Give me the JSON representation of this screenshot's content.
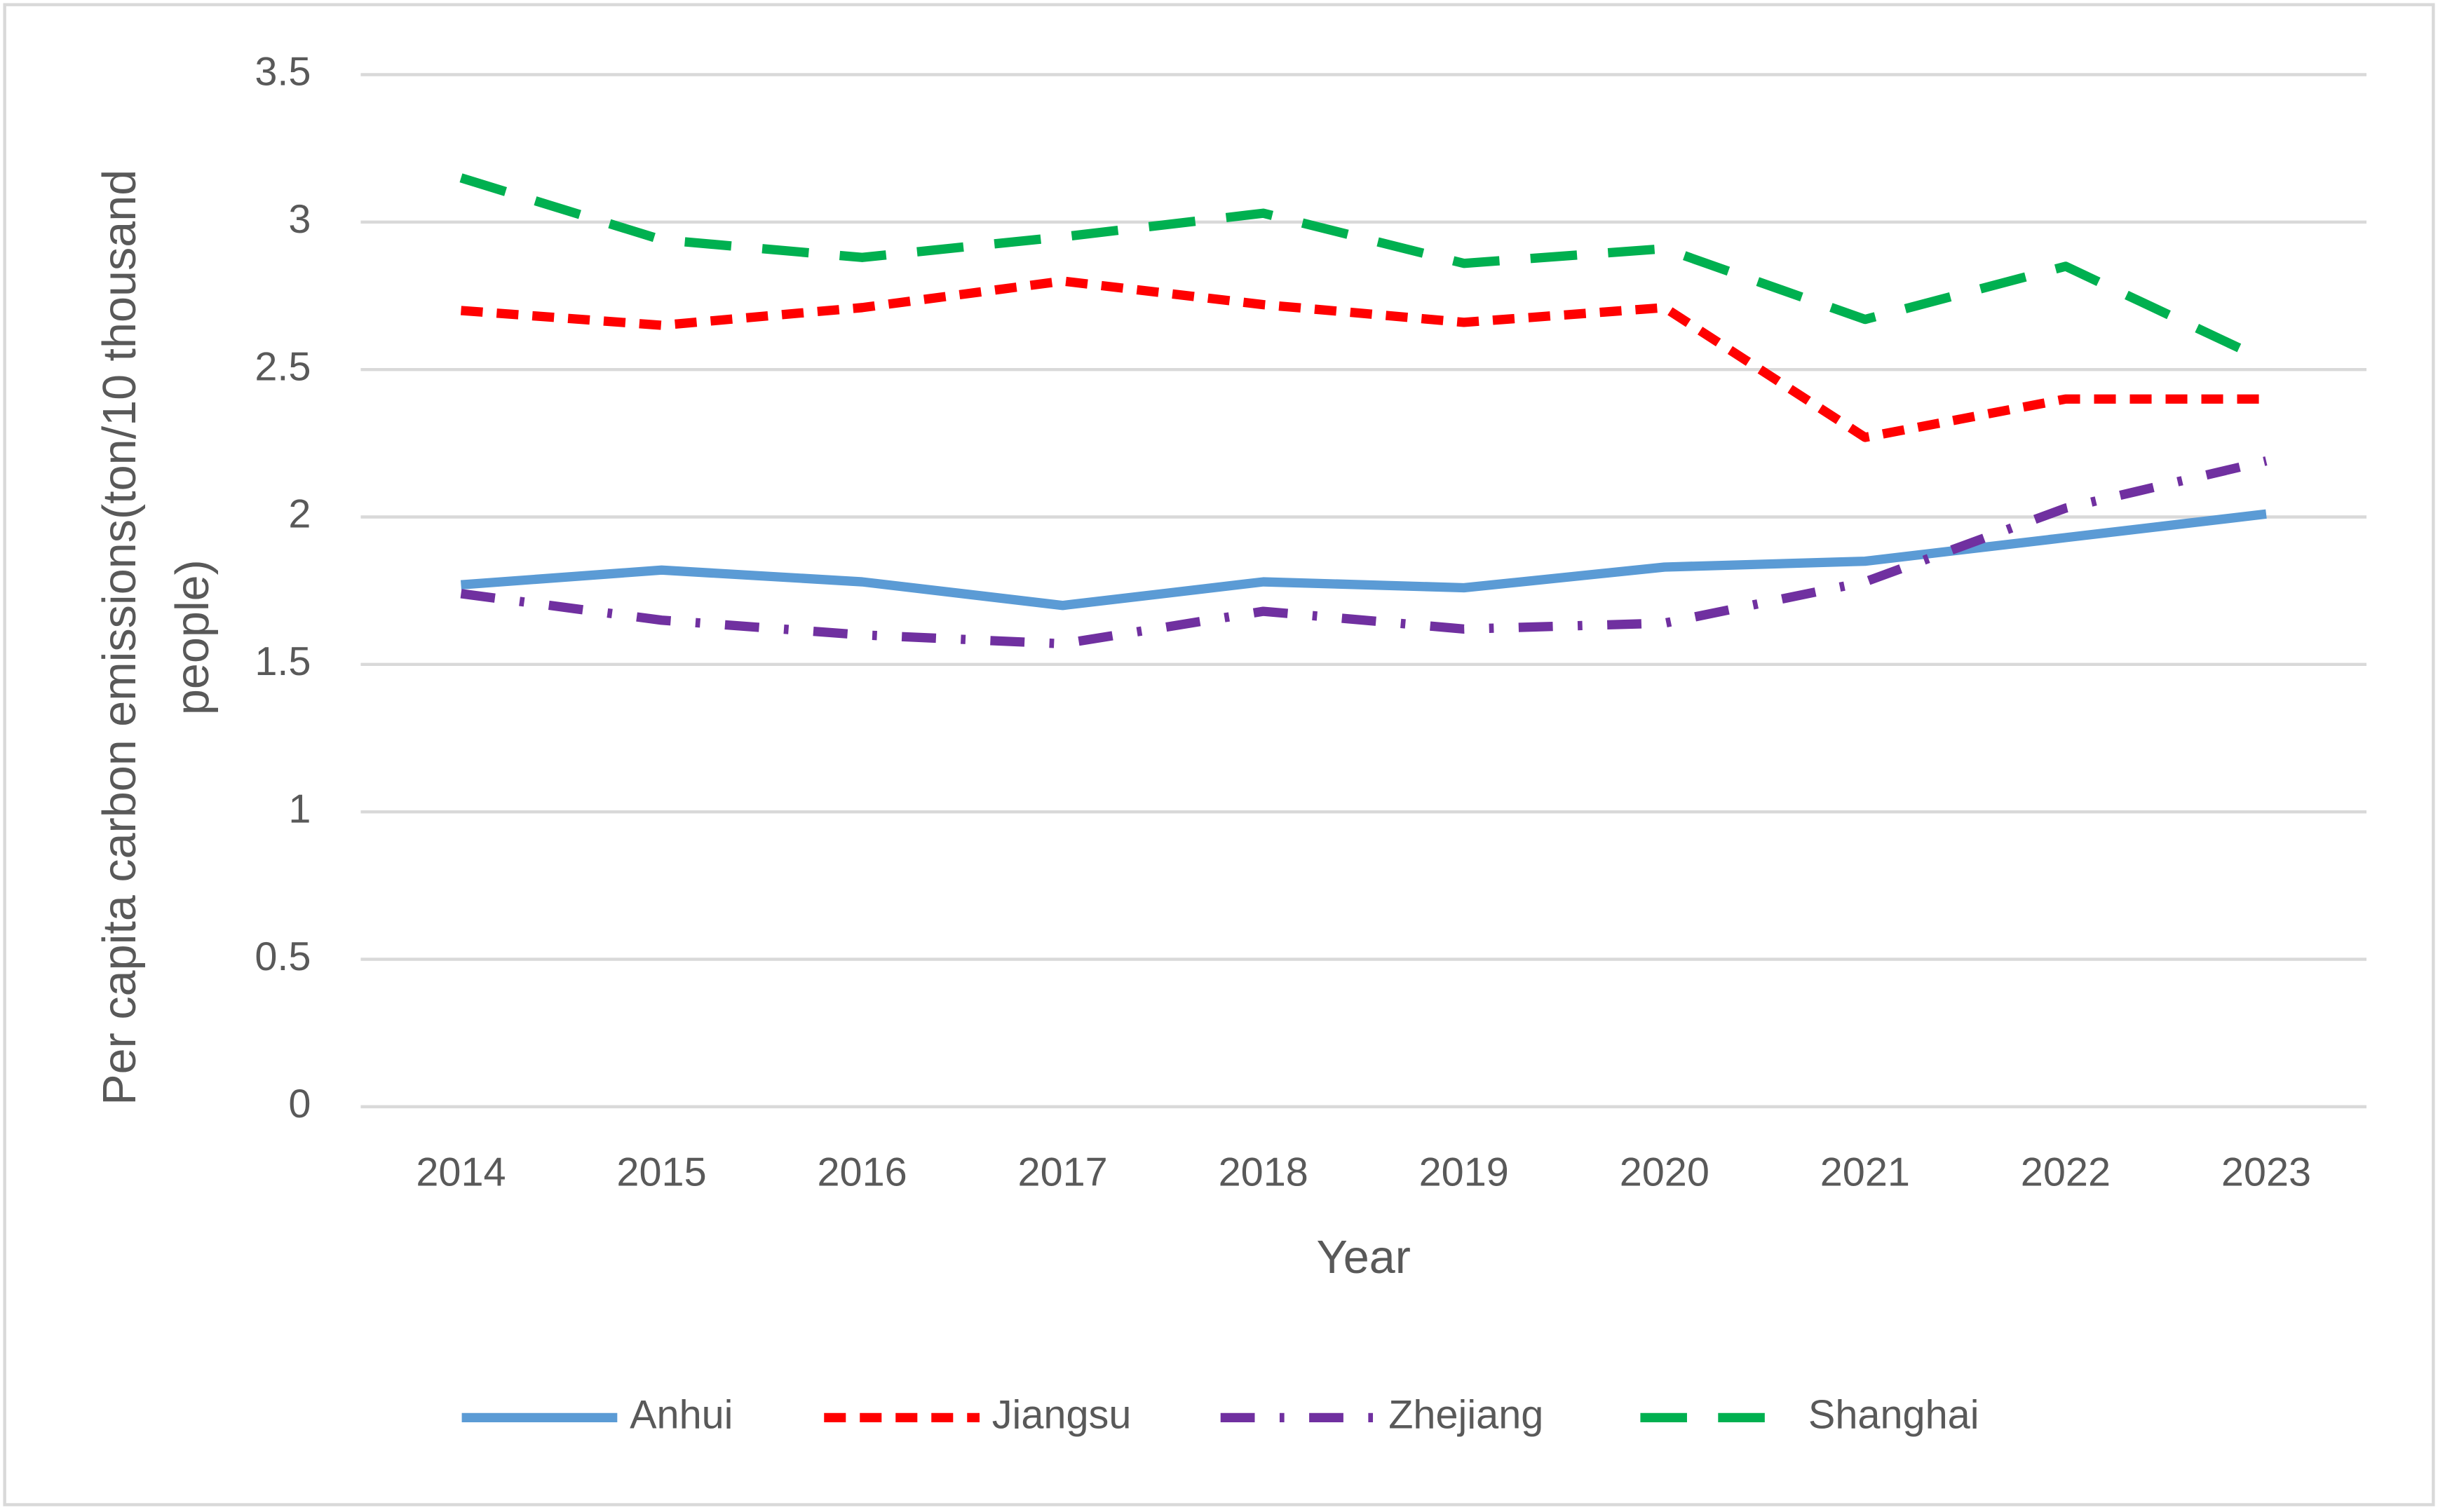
{
  "chart_data": {
    "type": "line",
    "xlabel": "Year",
    "ylabel": "Per capita carbon emissions(ton/10 thousand people)",
    "categories": [
      "2014",
      "2015",
      "2016",
      "2017",
      "2018",
      "2019",
      "2020",
      "2021",
      "2022",
      "2023"
    ],
    "series": [
      {
        "name": "Anhui",
        "color": "#5b9bd5",
        "dash": "solid",
        "values": [
          1.77,
          1.82,
          1.78,
          1.7,
          1.78,
          1.76,
          1.83,
          1.85,
          1.93,
          2.01
        ]
      },
      {
        "name": "Jiangsu",
        "color": "#ff0000",
        "dash": "dash",
        "values": [
          2.7,
          2.65,
          2.71,
          2.8,
          2.72,
          2.66,
          2.71,
          2.27,
          2.4,
          2.4
        ]
      },
      {
        "name": "Zhejiang",
        "color": "#7030a0",
        "dash": "longdashdot",
        "values": [
          1.74,
          1.65,
          1.6,
          1.57,
          1.68,
          1.62,
          1.64,
          1.78,
          2.03,
          2.19
        ]
      },
      {
        "name": "Shanghai",
        "color": "#00b050",
        "dash": "longdash",
        "values": [
          3.15,
          2.94,
          2.88,
          2.95,
          3.03,
          2.86,
          2.91,
          2.67,
          2.85,
          2.53
        ]
      }
    ],
    "ylim": [
      0,
      3.5
    ],
    "yticks": [
      0,
      0.5,
      1,
      1.5,
      2,
      2.5,
      3,
      3.5
    ],
    "grid": true,
    "legend": "bottom"
  }
}
